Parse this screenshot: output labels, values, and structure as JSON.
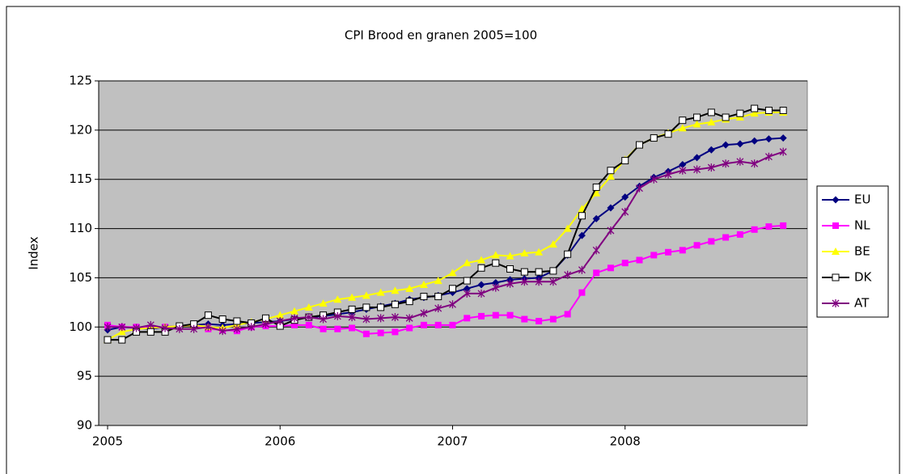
{
  "chart_data": {
    "type": "line",
    "title": "CPI Brood en granen 2005=100",
    "y_label": "Index",
    "categories": [
      "2005",
      null,
      null,
      null,
      null,
      null,
      null,
      null,
      null,
      null,
      null,
      null,
      "2006",
      null,
      null,
      null,
      null,
      null,
      null,
      null,
      null,
      null,
      null,
      null,
      "2007",
      null,
      null,
      null,
      null,
      null,
      null,
      null,
      null,
      null,
      null,
      null,
      "2008",
      null,
      null,
      null,
      null,
      null,
      null,
      null,
      null,
      null,
      null,
      null
    ],
    "ylim": [
      90,
      125
    ],
    "yticks": [
      90,
      95,
      100,
      105,
      110,
      115,
      120,
      125
    ],
    "grid": true,
    "legend": "right",
    "series": [
      {
        "name": "EU",
        "color": "#000080",
        "marker": "diamond",
        "values": [
          99.7,
          100,
          99.9,
          99.8,
          100,
          100.1,
          100.2,
          100.3,
          100.2,
          100.3,
          100.4,
          100.5,
          100.6,
          100.8,
          101,
          101.1,
          101.3,
          101.5,
          101.8,
          102.1,
          102.4,
          102.8,
          103.0,
          103.2,
          103.5,
          103.9,
          104.3,
          104.5,
          104.8,
          104.9,
          105.0,
          105.7,
          107.3,
          109.3,
          111.0,
          112.1,
          113.2,
          114.3,
          115.2,
          115.8,
          116.5,
          117.2,
          118,
          118.5,
          118.6,
          118.9,
          119.1,
          119.2
        ]
      },
      {
        "name": "NL",
        "color": "#ff00ff",
        "marker": "square",
        "values": [
          100.2,
          100,
          100,
          99.9,
          100,
          100.1,
          100.2,
          99.8,
          99.7,
          99.6,
          100,
          100.1,
          100.1,
          100.2,
          100.2,
          99.8,
          99.8,
          99.9,
          99.3,
          99.4,
          99.5,
          99.9,
          100.2,
          100.2,
          100.2,
          100.9,
          101.1,
          101.2,
          101.2,
          100.8,
          100.6,
          100.8,
          101.3,
          103.5,
          105.5,
          106,
          106.5,
          106.8,
          107.3,
          107.6,
          107.8,
          108.3,
          108.7,
          109.1,
          109.4,
          109.9,
          110.2,
          110.3
        ]
      },
      {
        "name": "BE",
        "color": "#ffff00",
        "marker": "triangle",
        "values": [
          98.7,
          99.5,
          99.8,
          99.9,
          100,
          100.1,
          100.2,
          100,
          99.9,
          100.2,
          100.5,
          100.8,
          101.2,
          101.6,
          102.0,
          102.4,
          102.8,
          103.0,
          103.2,
          103.5,
          103.7,
          103.9,
          104.3,
          104.7,
          105.5,
          106.5,
          106.8,
          107.3,
          107.2,
          107.5,
          107.6,
          108.4,
          110,
          112,
          113.6,
          115.3,
          117,
          118.5,
          119.2,
          119.7,
          120.2,
          120.6,
          120.8,
          121.1,
          121.3,
          121.7,
          121.8,
          121.8
        ]
      },
      {
        "name": "DK",
        "color": "#000000",
        "marker": "open-square",
        "values": [
          98.7,
          98.7,
          99.5,
          99.5,
          99.5,
          100.1,
          100.3,
          101.2,
          100.8,
          100.6,
          100.4,
          100.9,
          100.1,
          100.7,
          101,
          101.2,
          101.5,
          101.8,
          102,
          102,
          102.3,
          102.6,
          103.1,
          103.1,
          103.9,
          104.7,
          106.0,
          106.5,
          105.9,
          105.6,
          105.6,
          105.7,
          107.4,
          111.3,
          114.2,
          115.9,
          116.9,
          118.5,
          119.2,
          119.6,
          121.0,
          121.3,
          121.8,
          121.3,
          121.7,
          122.2,
          122,
          122
        ]
      },
      {
        "name": "AT",
        "color": "#800080",
        "marker": "star",
        "values": [
          100,
          100,
          99.9,
          100.2,
          99.9,
          99.8,
          99.8,
          100,
          99.6,
          99.8,
          100,
          100.3,
          100.6,
          100.9,
          101,
          100.8,
          101.1,
          101,
          100.8,
          100.9,
          101,
          100.9,
          101.4,
          101.9,
          102.3,
          103.4,
          103.4,
          104,
          104.4,
          104.6,
          104.6,
          104.6,
          105.3,
          105.8,
          107.8,
          109.8,
          111.7,
          114.1,
          115,
          115.5,
          115.9,
          116,
          116.2,
          116.6,
          116.8,
          116.6,
          117.3,
          117.8
        ]
      }
    ]
  }
}
